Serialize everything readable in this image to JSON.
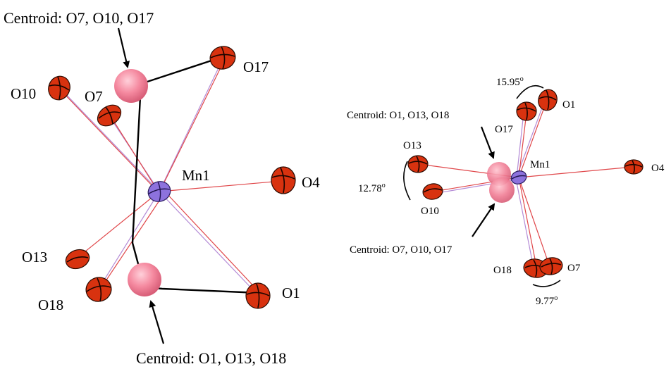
{
  "left_panel": {
    "centroid_top_label": "Centroid: O7, O10, O17",
    "centroid_bottom_label": "Centroid: O1, O13, O18",
    "atoms": {
      "mn1": "Mn1",
      "o1": "O1",
      "o4": "O4",
      "o7": "O7",
      "o10": "O10",
      "o13": "O13",
      "o17": "O17",
      "o18": "O18"
    }
  },
  "right_panel": {
    "centroid_top_label": "Centroid: O1, O13, O18",
    "centroid_bottom_label": "Centroid: O7, O10, O17",
    "angle_top": "15.95",
    "angle_left": "12.78",
    "angle_bottom": "9.77",
    "degree_symbol": "o",
    "atoms": {
      "mn1": "Mn1",
      "o1": "O1",
      "o4": "O4",
      "o7": "O7",
      "o10": "O10",
      "o13": "O13",
      "o17": "O17",
      "o18": "O18"
    }
  },
  "colors": {
    "oxygen": "#d8320f",
    "manganese": "#8d72dd",
    "centroid": "#f07f96",
    "bond_red": "#e0474a",
    "bond_violet": "#b48bd6"
  }
}
